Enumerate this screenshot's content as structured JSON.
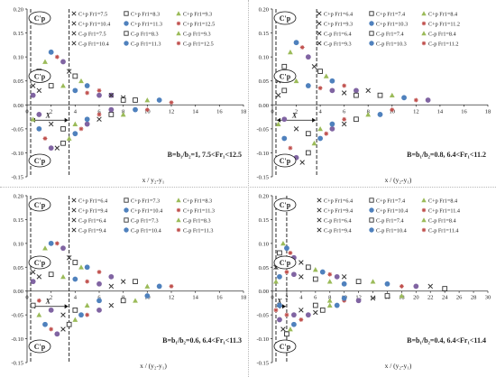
{
  "colors": {
    "steel_blue": "#4f81bd",
    "red": "#c0504d",
    "green": "#9bbb59",
    "purple": "#8064a2",
    "teal": "#4bacc6",
    "orange": "#f79646",
    "dark_blue": "#1f3c88",
    "axis": "#333333",
    "grid": "#d0d0d0",
    "hollow": "#333333"
  },
  "chart_data": [
    {
      "type": "scatter",
      "panel_label": "B=b₁/b₂=1, 7.5<Fr₁<12.5",
      "xlabel": "x / y₂-y₁",
      "xlim": [
        0,
        18
      ],
      "ylim": [
        -0.15,
        0.2
      ],
      "xticks": [
        "0",
        "2",
        "4",
        "6",
        "8",
        "10",
        "12",
        "14",
        "16",
        "18"
      ],
      "yticks": [
        "0.20",
        "0.15",
        "0.10",
        "0.05",
        "0.00",
        "-0.05",
        "-0.10",
        "-0.15"
      ],
      "annotations": {
        "cp_top": "C'p",
        "cp_mid": "C'p",
        "cp_bot": "C'p",
        "x_marker": "X",
        "x_marker_value": 3.5
      },
      "series": [
        {
          "name": "C+p Fr1=7.5",
          "marker": "x",
          "color": "#333333"
        },
        {
          "name": "C+p Fr1=8.3",
          "marker": "sq",
          "color": "#333333"
        },
        {
          "name": "C+p Fr1=9.3",
          "marker": "tri",
          "color": "#9bbb59"
        },
        {
          "name": "C+p Fr1=10.4",
          "marker": "x",
          "color": "#333333"
        },
        {
          "name": "C+p Fr1=11.3",
          "marker": "dot",
          "color": "#4f81bd"
        },
        {
          "name": "C+p Fr1=12.5",
          "marker": "star",
          "color": "#c0504d"
        },
        {
          "name": "C-p Fr1=7.5",
          "marker": "x",
          "color": "#333333"
        },
        {
          "name": "C-p Fr1=8.3",
          "marker": "sq",
          "color": "#333333"
        },
        {
          "name": "C-p Fr1=9.3",
          "marker": "tri",
          "color": "#9bbb59"
        },
        {
          "name": "C-p Fr1=10.4",
          "marker": "x",
          "color": "#333333"
        },
        {
          "name": "C-p Fr1=11.3",
          "marker": "dot",
          "color": "#4f81bd"
        },
        {
          "name": "C-p Fr1=12.5",
          "marker": "star",
          "color": "#c0504d"
        }
      ],
      "sample_points": [
        [
          0.5,
          0.04
        ],
        [
          1.0,
          0.07
        ],
        [
          1.5,
          0.09
        ],
        [
          2.0,
          0.11
        ],
        [
          2.5,
          0.1
        ],
        [
          3.0,
          0.09
        ],
        [
          3.5,
          0.07
        ],
        [
          4.0,
          0.06
        ],
        [
          4.5,
          0.05
        ],
        [
          5.0,
          0.04
        ],
        [
          6.0,
          0.03
        ],
        [
          7.0,
          0.02
        ],
        [
          8.0,
          0.015
        ],
        [
          9.0,
          0.01
        ],
        [
          10.0,
          0.01
        ],
        [
          11.0,
          0.01
        ],
        [
          12.0,
          0.005
        ],
        [
          0.5,
          0.02
        ],
        [
          1.0,
          0.03
        ],
        [
          2.0,
          0.04
        ],
        [
          3.0,
          0.04
        ],
        [
          4.0,
          0.03
        ],
        [
          5.0,
          0.025
        ],
        [
          6.0,
          0.02
        ],
        [
          7.0,
          0.02
        ],
        [
          8.0,
          0.01
        ],
        [
          0.5,
          -0.03
        ],
        [
          1.0,
          -0.05
        ],
        [
          1.5,
          -0.07
        ],
        [
          2.0,
          -0.09
        ],
        [
          2.5,
          -0.09
        ],
        [
          3.0,
          -0.08
        ],
        [
          3.5,
          -0.07
        ],
        [
          4.0,
          -0.06
        ],
        [
          4.5,
          -0.05
        ],
        [
          5.0,
          -0.04
        ],
        [
          6.0,
          -0.03
        ],
        [
          7.0,
          -0.02
        ],
        [
          8.0,
          -0.02
        ],
        [
          9.0,
          -0.01
        ],
        [
          10.0,
          -0.01
        ],
        [
          1.0,
          -0.02
        ],
        [
          2.0,
          -0.04
        ],
        [
          3.0,
          -0.05
        ],
        [
          4.0,
          -0.04
        ],
        [
          5.0,
          -0.03
        ],
        [
          6.0,
          -0.02
        ],
        [
          7.0,
          -0.01
        ]
      ]
    },
    {
      "type": "scatter",
      "panel_label": "B=b₁/b₂=0.8, 6.4<Fr₁<11.2",
      "xlabel": "x / (y₂-y₁)",
      "xlim": [
        0,
        18
      ],
      "ylim": [
        -0.15,
        0.2
      ],
      "xticks": [
        "0",
        "2",
        "4",
        "6",
        "8",
        "10",
        "12",
        "14",
        "16",
        "18"
      ],
      "yticks": [
        "0.20",
        "0.15",
        "0.10",
        "0.05",
        "0.00",
        "-0.05",
        "-0.10",
        "-0.15"
      ],
      "annotations": {
        "cp_top": "C'p",
        "cp_mid": "C'p",
        "cp_bot": "C'p",
        "x_marker": "X",
        "x_marker_value": 3.7
      },
      "series": [
        {
          "name": "C+p Fr1=6.4",
          "marker": "x",
          "color": "#333333"
        },
        {
          "name": "C+p Fr1=7.4",
          "marker": "sq",
          "color": "#333333"
        },
        {
          "name": "C+p Fr1=8.4",
          "marker": "tri",
          "color": "#9bbb59"
        },
        {
          "name": "C+p Fr1=9.3",
          "marker": "x",
          "color": "#333333"
        },
        {
          "name": "C+p Fr1=10.3",
          "marker": "dot",
          "color": "#4f81bd"
        },
        {
          "name": "C+p Fr1=11.2",
          "marker": "star",
          "color": "#c0504d"
        },
        {
          "name": "C-p Fr1=6.4",
          "marker": "x",
          "color": "#333333"
        },
        {
          "name": "C-p Fr1=7.4",
          "marker": "sq",
          "color": "#333333"
        },
        {
          "name": "C-p Fr1=8.4",
          "marker": "tri",
          "color": "#9bbb59"
        },
        {
          "name": "C-p Fr1=9.3",
          "marker": "x",
          "color": "#333333"
        },
        {
          "name": "C-p Fr1=10.3",
          "marker": "dot",
          "color": "#4f81bd"
        },
        {
          "name": "C-p Fr1=11.2",
          "marker": "star",
          "color": "#c0504d"
        }
      ],
      "sample_points": [
        [
          0.5,
          0.05
        ],
        [
          1.0,
          0.08
        ],
        [
          1.5,
          0.11
        ],
        [
          2.0,
          0.13
        ],
        [
          2.5,
          0.12
        ],
        [
          3.0,
          0.1
        ],
        [
          3.5,
          0.08
        ],
        [
          4.0,
          0.07
        ],
        [
          4.5,
          0.06
        ],
        [
          5.0,
          0.05
        ],
        [
          6.0,
          0.04
        ],
        [
          7.0,
          0.03
        ],
        [
          8.0,
          0.03
        ],
        [
          9.0,
          0.02
        ],
        [
          10.0,
          0.02
        ],
        [
          11.0,
          0.015
        ],
        [
          12.0,
          0.01
        ],
        [
          13.0,
          0.01
        ],
        [
          0.5,
          0.02
        ],
        [
          1.0,
          0.03
        ],
        [
          2.0,
          0.05
        ],
        [
          3.0,
          0.04
        ],
        [
          4.0,
          0.035
        ],
        [
          5.0,
          0.03
        ],
        [
          6.0,
          0.025
        ],
        [
          7.0,
          0.02
        ],
        [
          0.5,
          -0.04
        ],
        [
          1.0,
          -0.07
        ],
        [
          1.5,
          -0.09
        ],
        [
          2.0,
          -0.11
        ],
        [
          2.5,
          -0.12
        ],
        [
          3.0,
          -0.1
        ],
        [
          3.5,
          -0.08
        ],
        [
          4.0,
          -0.07
        ],
        [
          4.5,
          -0.06
        ],
        [
          5.0,
          -0.05
        ],
        [
          6.0,
          -0.04
        ],
        [
          7.0,
          -0.03
        ],
        [
          8.0,
          -0.02
        ],
        [
          9.0,
          -0.02
        ],
        [
          10.0,
          -0.01
        ],
        [
          1.0,
          -0.03
        ],
        [
          2.0,
          -0.05
        ],
        [
          3.0,
          -0.06
        ],
        [
          4.0,
          -0.05
        ],
        [
          5.0,
          -0.04
        ],
        [
          6.0,
          -0.03
        ]
      ]
    },
    {
      "type": "scatter",
      "panel_label": "B=b₁/b₂=0.6, 6.4<Fr₁<11.3",
      "xlabel": "x / (y₂-y₁)",
      "xlim": [
        0,
        18
      ],
      "ylim": [
        -0.15,
        0.2
      ],
      "xticks": [
        "0",
        "2",
        "4",
        "6",
        "8",
        "10",
        "12",
        "14",
        "16",
        "18"
      ],
      "yticks": [
        "0.20",
        "0.15",
        "0.10",
        "0.05",
        "0.00",
        "-0.05",
        "-0.10",
        "-0.15"
      ],
      "annotations": {
        "cp_top": "C'p",
        "cp_mid": "C'p",
        "cp_bot": "C'p",
        "x_marker": "X",
        "x_marker_value": 3.5
      },
      "series": [
        {
          "name": "C+p Fr1=6.4",
          "marker": "x",
          "color": "#333333"
        },
        {
          "name": "C+p Fr1=7.3",
          "marker": "sq",
          "color": "#333333"
        },
        {
          "name": "C+p Fr1=8.3",
          "marker": "tri",
          "color": "#9bbb59"
        },
        {
          "name": "C+p Fr1=9.4",
          "marker": "x",
          "color": "#333333"
        },
        {
          "name": "C+p Fr1=10.4",
          "marker": "dot",
          "color": "#4f81bd"
        },
        {
          "name": "C+p Fr1=11.3",
          "marker": "star",
          "color": "#c0504d"
        },
        {
          "name": "C-p Fr1=6.4",
          "marker": "x",
          "color": "#333333"
        },
        {
          "name": "C-p Fr1=7.3",
          "marker": "sq",
          "color": "#333333"
        },
        {
          "name": "C-p Fr1=8.3",
          "marker": "tri",
          "color": "#9bbb59"
        },
        {
          "name": "C-p Fr1=9.4",
          "marker": "x",
          "color": "#333333"
        },
        {
          "name": "C-p Fr1=10.4",
          "marker": "dot",
          "color": "#4f81bd"
        },
        {
          "name": "C-p Fr1=11.3",
          "marker": "star",
          "color": "#c0504d"
        }
      ],
      "sample_points": [
        [
          0.5,
          0.04
        ],
        [
          1.0,
          0.06
        ],
        [
          1.5,
          0.09
        ],
        [
          2.0,
          0.1
        ],
        [
          2.5,
          0.1
        ],
        [
          3.0,
          0.09
        ],
        [
          3.5,
          0.07
        ],
        [
          4.0,
          0.06
        ],
        [
          4.5,
          0.05
        ],
        [
          5.0,
          0.05
        ],
        [
          6.0,
          0.04
        ],
        [
          7.0,
          0.03
        ],
        [
          8.0,
          0.02
        ],
        [
          9.0,
          0.02
        ],
        [
          10.0,
          0.01
        ],
        [
          11.0,
          0.01
        ],
        [
          12.0,
          0.01
        ],
        [
          0.5,
          0.02
        ],
        [
          1.0,
          0.03
        ],
        [
          2.0,
          0.035
        ],
        [
          3.0,
          0.03
        ],
        [
          4.0,
          0.025
        ],
        [
          5.0,
          0.02
        ],
        [
          6.0,
          0.015
        ],
        [
          7.0,
          0.01
        ],
        [
          0.5,
          -0.03
        ],
        [
          1.0,
          -0.05
        ],
        [
          1.5,
          -0.07
        ],
        [
          2.0,
          -0.08
        ],
        [
          2.5,
          -0.09
        ],
        [
          3.0,
          -0.08
        ],
        [
          3.5,
          -0.07
        ],
        [
          4.0,
          -0.06
        ],
        [
          4.5,
          -0.05
        ],
        [
          5.0,
          -0.05
        ],
        [
          6.0,
          -0.04
        ],
        [
          7.0,
          -0.03
        ],
        [
          8.0,
          -0.02
        ],
        [
          9.0,
          -0.02
        ],
        [
          10.0,
          -0.01
        ],
        [
          1.0,
          -0.02
        ],
        [
          2.0,
          -0.04
        ],
        [
          3.0,
          -0.05
        ],
        [
          4.0,
          -0.04
        ],
        [
          5.0,
          -0.03
        ],
        [
          6.0,
          -0.02
        ]
      ]
    },
    {
      "type": "scatter",
      "panel_label": "B=b₁/b₂=0.4, 6.4<Fr₁<11.4",
      "xlabel": "x / (y₂-y₁)",
      "xlim": [
        0,
        30
      ],
      "ylim": [
        -0.15,
        0.2
      ],
      "xticks": [
        "0",
        "2",
        "4",
        "6",
        "8",
        "10",
        "12",
        "14",
        "16",
        "18",
        "20",
        "22",
        "24",
        "26",
        "28",
        "30"
      ],
      "yticks": [
        "0.20",
        "0.15",
        "0.10",
        "0.05",
        "0.00",
        "-0.05",
        "-0.10",
        "-0.15"
      ],
      "annotations": {
        "cp_top": "C'p",
        "cp_mid": "C'p",
        "cp_bot": "C'p",
        "x_marker": "X",
        "x_marker_value": 2.0
      },
      "series": [
        {
          "name": "C+p Fr1=6.4",
          "marker": "x",
          "color": "#333333"
        },
        {
          "name": "C+p Fr1=7.4",
          "marker": "sq",
          "color": "#333333"
        },
        {
          "name": "C+p Fr1=8.4",
          "marker": "tri",
          "color": "#9bbb59"
        },
        {
          "name": "C+p Fr1=9.4",
          "marker": "x",
          "color": "#333333"
        },
        {
          "name": "C+p Fr1=10.4",
          "marker": "dot",
          "color": "#4f81bd"
        },
        {
          "name": "C+p Fr1=11.4",
          "marker": "star",
          "color": "#c0504d"
        },
        {
          "name": "C-p Fr1=6.4",
          "marker": "x",
          "color": "#333333"
        },
        {
          "name": "C-p Fr1=7.4",
          "marker": "sq",
          "color": "#333333"
        },
        {
          "name": "C-p Fr1=8.4",
          "marker": "tri",
          "color": "#9bbb59"
        },
        {
          "name": "C-p Fr1=9.4",
          "marker": "x",
          "color": "#333333"
        },
        {
          "name": "C-p Fr1=10.4",
          "marker": "dot",
          "color": "#4f81bd"
        },
        {
          "name": "C-p Fr1=11.4",
          "marker": "star",
          "color": "#c0504d"
        }
      ],
      "sample_points": [
        [
          0.5,
          0.05
        ],
        [
          1.0,
          0.08
        ],
        [
          1.5,
          0.1
        ],
        [
          2.0,
          0.09
        ],
        [
          2.5,
          0.08
        ],
        [
          3.0,
          0.07
        ],
        [
          4.0,
          0.06
        ],
        [
          5.0,
          0.05
        ],
        [
          6.0,
          0.045
        ],
        [
          7.0,
          0.04
        ],
        [
          8.0,
          0.035
        ],
        [
          9.0,
          0.03
        ],
        [
          10.0,
          0.03
        ],
        [
          12.0,
          0.02
        ],
        [
          14.0,
          0.02
        ],
        [
          16.0,
          0.015
        ],
        [
          18.0,
          0.01
        ],
        [
          20.0,
          0.01
        ],
        [
          22.0,
          0.01
        ],
        [
          24.0,
          0.005
        ],
        [
          0.5,
          0.02
        ],
        [
          1.0,
          0.03
        ],
        [
          2.0,
          0.04
        ],
        [
          3.0,
          0.035
        ],
        [
          4.0,
          0.03
        ],
        [
          6.0,
          0.025
        ],
        [
          8.0,
          0.02
        ],
        [
          10.0,
          0.015
        ],
        [
          0.5,
          -0.04
        ],
        [
          1.0,
          -0.06
        ],
        [
          1.5,
          -0.08
        ],
        [
          2.0,
          -0.09
        ],
        [
          2.5,
          -0.08
        ],
        [
          3.0,
          -0.07
        ],
        [
          4.0,
          -0.06
        ],
        [
          5.0,
          -0.05
        ],
        [
          6.0,
          -0.045
        ],
        [
          7.0,
          -0.04
        ],
        [
          8.0,
          -0.03
        ],
        [
          9.0,
          -0.03
        ],
        [
          10.0,
          -0.02
        ],
        [
          12.0,
          -0.02
        ],
        [
          14.0,
          -0.015
        ],
        [
          16.0,
          -0.01
        ],
        [
          18.0,
          -0.01
        ],
        [
          1.0,
          -0.03
        ],
        [
          2.0,
          -0.05
        ],
        [
          3.0,
          -0.05
        ],
        [
          4.0,
          -0.04
        ],
        [
          6.0,
          -0.03
        ],
        [
          8.0,
          -0.02
        ],
        [
          10.0,
          -0.015
        ]
      ]
    }
  ]
}
